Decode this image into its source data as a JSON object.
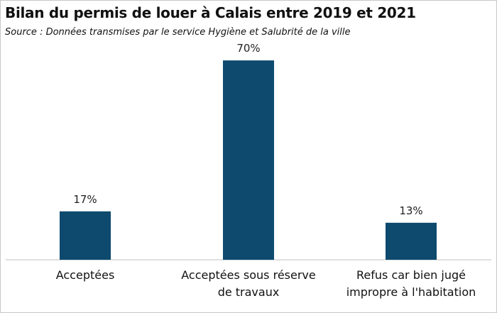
{
  "title": "Bilan du permis de louer à Calais entre 2019 et 2021",
  "subtitle": "Source : Données transmises par le service Hygiène et Salubrité de la ville",
  "chart_data": {
    "type": "bar",
    "categories": [
      "Acceptées",
      "Acceptées sous réserve de travaux",
      "Refus car bien jugé impropre à l'habitation"
    ],
    "category_lines": [
      [
        "Acceptées"
      ],
      [
        "Acceptées sous réserve",
        "de travaux"
      ],
      [
        "Refus car bien jugé",
        "impropre à l'habitation"
      ]
    ],
    "values": [
      17,
      70,
      13
    ],
    "value_labels": [
      "17%",
      "70%",
      "13%"
    ],
    "unit": "%",
    "ylim": [
      0,
      80
    ],
    "grid": false,
    "legend": "none",
    "bar_color": "#0e4a6e",
    "axis_color": "#bfbfbf"
  }
}
